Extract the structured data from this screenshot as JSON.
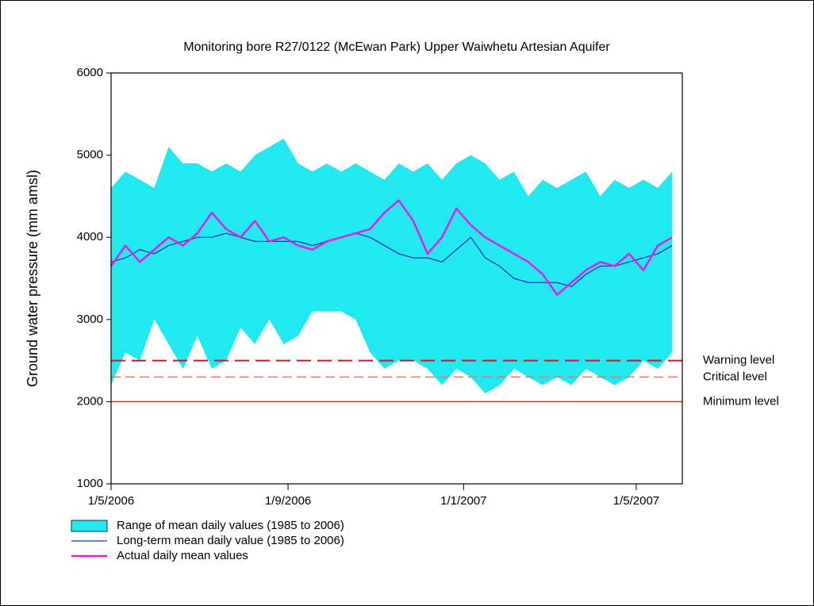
{
  "chart_data": {
    "type": "line",
    "title": "Monitoring bore R27/0122 (McEwan Park) Upper Waiwhetu Artesian Aquifer",
    "y_label": "Ground water pressure (mm amsl)",
    "x": [
      "2006-05-01",
      "2006-05-11",
      "2006-05-21",
      "2006-05-31",
      "2006-06-10",
      "2006-06-20",
      "2006-06-30",
      "2006-07-10",
      "2006-07-20",
      "2006-07-30",
      "2006-08-09",
      "2006-08-19",
      "2006-08-29",
      "2006-09-08",
      "2006-09-18",
      "2006-09-28",
      "2006-10-08",
      "2006-10-18",
      "2006-10-28",
      "2006-11-07",
      "2006-11-17",
      "2006-11-27",
      "2006-12-07",
      "2006-12-17",
      "2006-12-27",
      "2007-01-06",
      "2007-01-16",
      "2007-01-26",
      "2007-02-05",
      "2007-02-15",
      "2007-02-25",
      "2007-03-07",
      "2007-03-17",
      "2007-03-27",
      "2007-04-06",
      "2007-04-16",
      "2007-04-26",
      "2007-05-06",
      "2007-05-16",
      "2007-05-26"
    ],
    "xlim": [
      "2006-05-01",
      "2007-06-02"
    ],
    "xticks": [
      {
        "value": "2006-05-01",
        "label": "1/5/2006"
      },
      {
        "value": "2006-09-01",
        "label": "1/9/2006"
      },
      {
        "value": "2007-01-01",
        "label": "1/1/2007"
      },
      {
        "value": "2007-05-01",
        "label": "1/5/2007"
      }
    ],
    "ylim": [
      1000,
      6000
    ],
    "yticks": [
      1000,
      2000,
      3000,
      4000,
      5000,
      6000
    ],
    "series": [
      {
        "name": "Range of mean daily values (1985 to 2006)",
        "color": "#22e8f0",
        "style": "band",
        "upper": [
          4600,
          4800,
          4700,
          4600,
          5100,
          4900,
          4900,
          4800,
          4900,
          4800,
          5000,
          5100,
          5200,
          4900,
          4800,
          4900,
          4800,
          4900,
          4800,
          4700,
          4900,
          4800,
          4900,
          4700,
          4900,
          5000,
          4900,
          4700,
          4800,
          4500,
          4700,
          4600,
          4700,
          4800,
          4500,
          4700,
          4600,
          4700,
          4600,
          4800
        ],
        "lower": [
          2200,
          2600,
          2500,
          3000,
          2700,
          2400,
          2800,
          2400,
          2500,
          2900,
          2700,
          3000,
          2700,
          2800,
          3100,
          3100,
          3100,
          3000,
          2600,
          2400,
          2500,
          2500,
          2400,
          2200,
          2400,
          2300,
          2100,
          2200,
          2400,
          2300,
          2200,
          2300,
          2200,
          2400,
          2300,
          2200,
          2300,
          2500,
          2400,
          2600
        ]
      },
      {
        "name": "Long-term mean daily value (1985 to 2006)",
        "color": "#2a2ab8",
        "width": 1.2,
        "values": [
          3700,
          3750,
          3850,
          3800,
          3900,
          3950,
          4000,
          4000,
          4050,
          4000,
          3950,
          3950,
          3950,
          3950,
          3900,
          3950,
          4000,
          4050,
          4000,
          3900,
          3800,
          3750,
          3750,
          3700,
          3850,
          4000,
          3750,
          3650,
          3500,
          3450,
          3450,
          3450,
          3400,
          3550,
          3650,
          3650,
          3700,
          3750,
          3800,
          3900
        ]
      },
      {
        "name": "Actual daily mean values",
        "color": "#e020e0",
        "width": 2.5,
        "values": [
          3650,
          3900,
          3700,
          3850,
          4000,
          3900,
          4050,
          4300,
          4100,
          4000,
          4200,
          3950,
          4000,
          3900,
          3850,
          3950,
          4000,
          4050,
          4100,
          4300,
          4450,
          4200,
          3800,
          4000,
          4350,
          4150,
          4000,
          3900,
          3800,
          3700,
          3550,
          3300,
          3450,
          3600,
          3700,
          3650,
          3800,
          3600,
          3900,
          4000
        ]
      }
    ],
    "reference_lines": [
      {
        "label": "Warning level",
        "value": 2500,
        "color": "#b82020",
        "dash": "18,8",
        "width": 2
      },
      {
        "label": "Critical level",
        "value": 2300,
        "color": "#e07a6a",
        "dash": "12,6",
        "width": 1.5
      },
      {
        "label": "Minimum level",
        "value": 2000,
        "color": "#e02a20",
        "dash": "",
        "width": 1.5
      }
    ]
  }
}
